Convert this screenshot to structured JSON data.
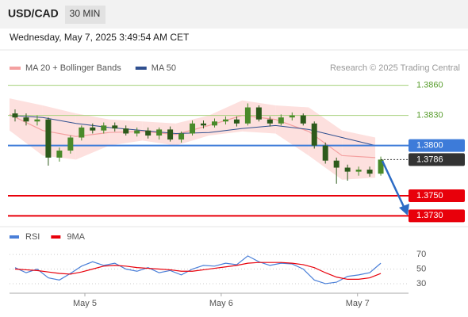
{
  "header": {
    "symbol": "USD/CAD",
    "timeframe": "30 MIN",
    "timestamp": "Wednesday, May 7, 2025 3:49:54 AM CET",
    "credit": "Research © 2025 Trading Central"
  },
  "chart_data": [
    {
      "type": "candlestick",
      "legend": [
        {
          "name": "MA 20 + Bollinger Bands",
          "color": "#f4a0a0"
        },
        {
          "name": "MA 50",
          "color": "#2f4f8f"
        }
      ],
      "ylim": [
        1.372,
        1.387
      ],
      "xlim": [
        0,
        36
      ],
      "xticks": [
        {
          "value": 6.8,
          "label": "May 5"
        },
        {
          "value": 19.1,
          "label": "May 6"
        },
        {
          "value": 31.4,
          "label": "May 7"
        }
      ],
      "up_color": "#4a8a2a",
      "down_color": "#2d5a1b",
      "open": [
        1.3832,
        1.3828,
        1.3824,
        1.3826,
        1.3788,
        1.3795,
        1.3808,
        1.3818,
        1.3815,
        1.382,
        1.3817,
        1.3812,
        1.3815,
        1.381,
        1.3816,
        1.3806,
        1.3812,
        1.3822,
        1.382,
        1.3824,
        1.3826,
        1.3822,
        1.3838,
        1.3826,
        1.3822,
        1.3828,
        1.383,
        1.3822,
        1.38,
        1.3785,
        1.3778,
        1.3774,
        1.3776,
        1.3772
      ],
      "high": [
        1.3836,
        1.3832,
        1.383,
        1.3828,
        1.3798,
        1.381,
        1.382,
        1.3822,
        1.3823,
        1.3823,
        1.382,
        1.3818,
        1.3818,
        1.3818,
        1.3819,
        1.3814,
        1.3825,
        1.3825,
        1.3827,
        1.3829,
        1.3829,
        1.3842,
        1.384,
        1.3829,
        1.3831,
        1.3833,
        1.3832,
        1.3824,
        1.3803,
        1.3788,
        1.3781,
        1.3779,
        1.3779,
        1.3789
      ],
      "low": [
        1.3824,
        1.382,
        1.382,
        1.378,
        1.3784,
        1.3792,
        1.3805,
        1.3812,
        1.3812,
        1.3814,
        1.381,
        1.3809,
        1.3807,
        1.3806,
        1.3804,
        1.3803,
        1.381,
        1.3817,
        1.3818,
        1.3821,
        1.3819,
        1.382,
        1.3824,
        1.3819,
        1.382,
        1.3825,
        1.382,
        1.3797,
        1.3782,
        1.3762,
        1.3765,
        1.377,
        1.3769,
        1.377
      ],
      "close": [
        1.3828,
        1.3824,
        1.3826,
        1.3788,
        1.3795,
        1.3808,
        1.3818,
        1.3815,
        1.382,
        1.3817,
        1.3812,
        1.3815,
        1.381,
        1.3816,
        1.3806,
        1.3812,
        1.3822,
        1.382,
        1.3824,
        1.3826,
        1.3822,
        1.3838,
        1.3826,
        1.3822,
        1.3828,
        1.383,
        1.3822,
        1.38,
        1.3785,
        1.3778,
        1.3774,
        1.3776,
        1.3772,
        1.3786
      ],
      "bands": {
        "x": [
          0,
          3,
          6,
          9,
          12,
          15,
          18,
          21,
          24,
          27,
          30,
          33
        ],
        "upper": [
          1.3847,
          1.384,
          1.3832,
          1.3826,
          1.3824,
          1.3822,
          1.383,
          1.3845,
          1.384,
          1.3838,
          1.3815,
          1.3808
        ],
        "lower": [
          1.3815,
          1.379,
          1.3786,
          1.38,
          1.3805,
          1.38,
          1.381,
          1.3814,
          1.3812,
          1.379,
          1.3766,
          1.3768
        ],
        "ma20": [
          1.3831,
          1.3815,
          1.3809,
          1.3813,
          1.3814,
          1.3811,
          1.382,
          1.383,
          1.3826,
          1.3814,
          1.379,
          1.3788
        ],
        "ma50": [
          1.383,
          1.3828,
          1.3822,
          1.3818,
          1.3815,
          1.3812,
          1.3813,
          1.3817,
          1.382,
          1.3816,
          1.3808,
          1.38
        ]
      },
      "levels": [
        {
          "value": 1.386,
          "label": "1.3860",
          "color": "#a5d07a",
          "text_color": "#5a9e2f",
          "boxed": false
        },
        {
          "value": 1.383,
          "label": "1.3830",
          "color": "#a5d07a",
          "text_color": "#5a9e2f",
          "boxed": false
        },
        {
          "value": 1.38,
          "label": "1.3800",
          "color": "#3d7bd9",
          "text_color": "#ffffff",
          "boxed": true
        },
        {
          "value": 1.375,
          "label": "1.3750",
          "color": "#e8000b",
          "text_color": "#ffffff",
          "boxed": true
        },
        {
          "value": 1.373,
          "label": "1.3730",
          "color": "#e8000b",
          "text_color": "#ffffff",
          "boxed": true
        }
      ],
      "last_price": {
        "value": 1.3786,
        "label": "1.3786",
        "color": "#333333"
      }
    },
    {
      "type": "line",
      "ylim": [
        18,
        82
      ],
      "yticks": [
        30,
        50,
        70
      ],
      "grid": true,
      "series": [
        {
          "name": "RSI",
          "color": "#4a7fd8",
          "values": [
            52,
            45,
            50,
            38,
            35,
            44,
            54,
            60,
            55,
            58,
            50,
            47,
            52,
            45,
            48,
            42,
            50,
            55,
            54,
            58,
            56,
            68,
            60,
            55,
            58,
            57,
            50,
            35,
            30,
            32,
            40,
            42,
            45,
            58
          ]
        },
        {
          "name": "9MA",
          "color": "#e8000b",
          "values": [
            50,
            49,
            48,
            46,
            44,
            43,
            46,
            50,
            54,
            55,
            54,
            52,
            51,
            50,
            49,
            47,
            47,
            49,
            51,
            53,
            55,
            58,
            59,
            59,
            59,
            58,
            56,
            52,
            45,
            39,
            36,
            36,
            38,
            44
          ]
        }
      ]
    }
  ]
}
